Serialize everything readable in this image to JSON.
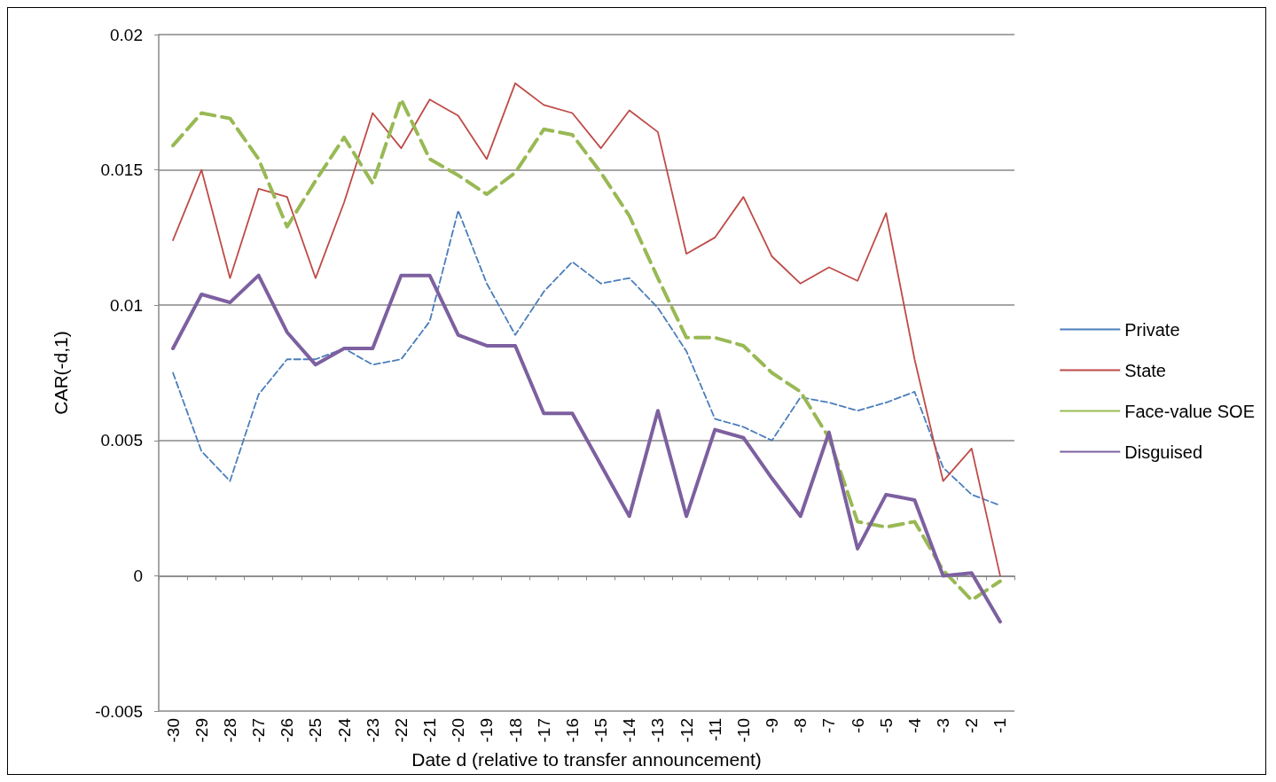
{
  "chart_data": {
    "type": "line",
    "xlabel": "Date d (relative to transfer announcement)",
    "ylabel": "CAR(-d,1)",
    "categories": [
      "-30",
      "-29",
      "-28",
      "-27",
      "-26",
      "-25",
      "-24",
      "-23",
      "-22",
      "-21",
      "-20",
      "-19",
      "-18",
      "-17",
      "-16",
      "-15",
      "-14",
      "-13",
      "-12",
      "-11",
      "-10",
      "-9",
      "-8",
      "-7",
      "-6",
      "-5",
      "-4",
      "-3",
      "-2",
      "-1"
    ],
    "ylim": [
      -0.005,
      0.02
    ],
    "yticks": [
      -0.005,
      0,
      0.005,
      0.01,
      0.015,
      0.02
    ],
    "grid": "y",
    "legend": "right",
    "marker": "none",
    "series": [
      {
        "name": "Private",
        "color": "#4a7ebb",
        "line_style": "dashed",
        "values": [
          0.0075,
          0.0046,
          0.0035,
          0.0067,
          0.008,
          0.008,
          0.0084,
          0.0078,
          0.008,
          0.0094,
          0.0135,
          0.0108,
          0.0089,
          0.0105,
          0.0116,
          0.0108,
          0.011,
          0.0099,
          0.0083,
          0.0058,
          0.0055,
          0.005,
          0.0066,
          0.0064,
          0.0061,
          0.0064,
          0.0068,
          0.004,
          0.003,
          0.0026
        ]
      },
      {
        "name": "State",
        "color": "#be4b48",
        "line_style": "solid",
        "values": [
          0.0124,
          0.015,
          0.011,
          0.0143,
          0.014,
          0.011,
          0.0138,
          0.0171,
          0.0158,
          0.0176,
          0.017,
          0.0154,
          0.0182,
          0.0174,
          0.0171,
          0.0158,
          0.0172,
          0.0164,
          0.0119,
          0.0125,
          0.014,
          0.0118,
          0.0108,
          0.0114,
          0.0109,
          0.0134,
          0.008,
          0.0035,
          0.0047,
          0
        ]
      },
      {
        "name": "Face-value SOE",
        "color": "#98b954",
        "line_style": "dashed",
        "values": [
          0.0159,
          0.0171,
          0.0169,
          0.0154,
          0.0129,
          0.0146,
          0.0162,
          0.0145,
          0.0176,
          0.0154,
          0.0148,
          0.0141,
          0.0149,
          0.0165,
          0.0163,
          0.0149,
          0.0133,
          0.011,
          0.0088,
          0.0088,
          0.0085,
          0.0075,
          0.0068,
          0.0051,
          0.002,
          0.0018,
          0.002,
          0.0002,
          -0.0009,
          -0.0002
        ]
      },
      {
        "name": "Disguised",
        "color": "#7d60a0",
        "line_style": "solid",
        "values": [
          0.0084,
          0.0104,
          0.0101,
          0.0111,
          0.009,
          0.0078,
          0.0084,
          0.0084,
          0.0111,
          0.0111,
          0.0089,
          0.0085,
          0.0085,
          0.006,
          0.006,
          0.0041,
          0.0022,
          0.0061,
          0.0022,
          0.0054,
          0.0051,
          0.0036,
          0.0022,
          0.0053,
          0.001,
          0.003,
          0.0028,
          0,
          0.0001,
          -0.0017
        ]
      }
    ]
  }
}
